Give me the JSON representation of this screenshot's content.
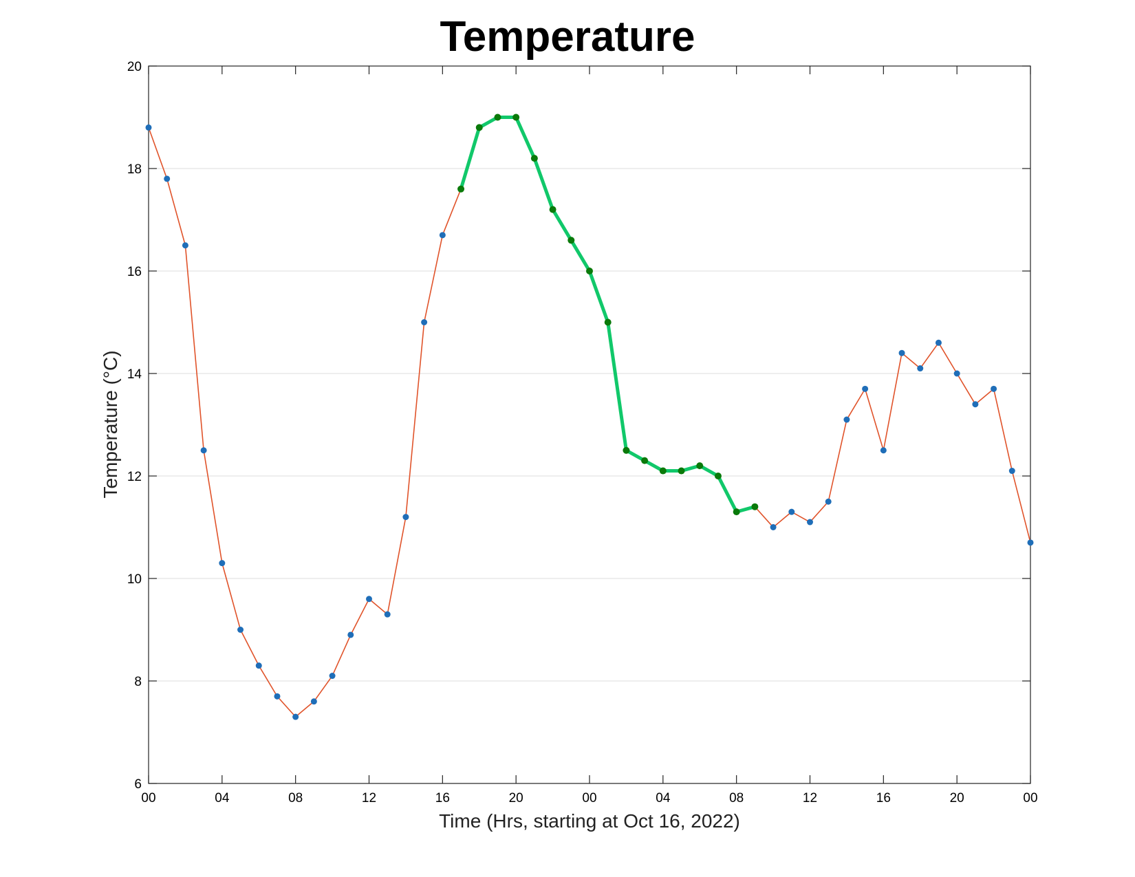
{
  "chart_data": {
    "type": "line",
    "title": "Temperature",
    "xlabel": "Time (Hrs, starting at Oct 16, 2022)",
    "ylabel": "Temperature (°C)",
    "x_unit": "hours",
    "xlim": [
      0,
      48
    ],
    "ylim": [
      6,
      20
    ],
    "x_ticks": [
      0,
      4,
      8,
      12,
      16,
      20,
      24,
      28,
      32,
      36,
      40,
      44,
      48
    ],
    "x_tick_labels": [
      "00",
      "04",
      "08",
      "12",
      "16",
      "20",
      "00",
      "04",
      "08",
      "12",
      "16",
      "20",
      "00"
    ],
    "y_ticks": [
      6,
      8,
      10,
      12,
      14,
      16,
      18,
      20
    ],
    "y_tick_labels": [
      "6",
      "8",
      "10",
      "12",
      "14",
      "16",
      "18",
      "20"
    ],
    "grid": "y-major",
    "colors": {
      "series_line": "#e0532a",
      "marker": "#1f6eb8",
      "highlight_line": "#11c86a",
      "highlight_marker": "#0a7a0a",
      "grid": "#dddddd"
    },
    "series": [
      {
        "x": [
          0,
          1,
          2,
          3,
          4,
          5,
          6,
          7,
          8,
          9,
          10,
          11,
          12,
          13,
          14,
          15,
          16,
          17,
          18,
          19,
          20,
          21,
          22,
          23,
          24,
          25,
          26,
          27,
          28,
          29,
          30,
          31,
          32,
          33,
          34,
          35,
          36,
          37,
          38,
          39,
          40,
          41,
          42,
          43,
          44,
          45,
          46,
          47,
          48
        ],
        "values": [
          18.8,
          17.8,
          16.5,
          12.5,
          10.3,
          9.0,
          8.3,
          7.7,
          7.3,
          7.6,
          8.1,
          8.9,
          9.6,
          9.3,
          11.2,
          15.0,
          16.7,
          17.6,
          18.8,
          19.0,
          19.0,
          18.2,
          17.2,
          16.6,
          16.0,
          15.0,
          12.5,
          12.3,
          12.1,
          12.1,
          12.2,
          12.0,
          11.3,
          11.4,
          11.0,
          11.3,
          11.1,
          11.5,
          13.1,
          13.7,
          12.5,
          14.4,
          14.1,
          14.6,
          14.0,
          13.4,
          13.7,
          12.1,
          10.7
        ]
      }
    ],
    "highlight_range": [
      17,
      33
    ]
  }
}
